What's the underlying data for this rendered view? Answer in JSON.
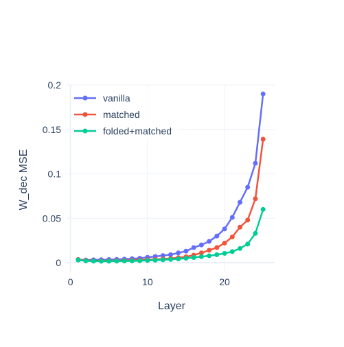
{
  "chart_data": {
    "type": "line",
    "title": "",
    "xlabel": "Layer",
    "ylabel": "W_dec MSE",
    "xlim": [
      -0.5,
      26.5
    ],
    "ylim": [
      -0.01,
      0.2
    ],
    "x_ticks": [
      0,
      10,
      20
    ],
    "x_tick_labels": [
      "0",
      "10",
      "20"
    ],
    "y_ticks": [
      0,
      0.05,
      0.1,
      0.15,
      0.2
    ],
    "y_tick_labels": [
      "0",
      "0.05",
      "0.1",
      "0.15",
      "0.2"
    ],
    "grid": true,
    "legend_position": "top-left",
    "x": [
      1,
      2,
      3,
      4,
      5,
      6,
      7,
      8,
      9,
      10,
      11,
      12,
      13,
      14,
      15,
      16,
      17,
      18,
      19,
      20,
      21,
      22,
      23,
      24,
      25
    ],
    "series": [
      {
        "name": "vanilla",
        "color": "#636efa",
        "values": [
          0.0035,
          0.003,
          0.0032,
          0.0033,
          0.0035,
          0.0037,
          0.004,
          0.0045,
          0.005,
          0.006,
          0.007,
          0.008,
          0.009,
          0.011,
          0.013,
          0.017,
          0.02,
          0.024,
          0.03,
          0.038,
          0.051,
          0.068,
          0.085,
          0.112,
          0.19
        ]
      },
      {
        "name": "matched",
        "color": "#ef553b",
        "values": [
          0.0035,
          0.0025,
          0.0022,
          0.0022,
          0.0022,
          0.0023,
          0.0025,
          0.0027,
          0.003,
          0.0033,
          0.0037,
          0.0042,
          0.0048,
          0.0056,
          0.0066,
          0.0085,
          0.011,
          0.014,
          0.017,
          0.022,
          0.029,
          0.04,
          0.048,
          0.072,
          0.139
        ]
      },
      {
        "name": "folded+matched",
        "color": "#00cc96",
        "values": [
          0.003,
          0.002,
          0.0018,
          0.0017,
          0.0017,
          0.0018,
          0.0019,
          0.002,
          0.0022,
          0.0025,
          0.0028,
          0.0032,
          0.0037,
          0.0043,
          0.005,
          0.0058,
          0.0068,
          0.0078,
          0.009,
          0.0105,
          0.0125,
          0.016,
          0.021,
          0.033,
          0.06
        ]
      }
    ]
  }
}
